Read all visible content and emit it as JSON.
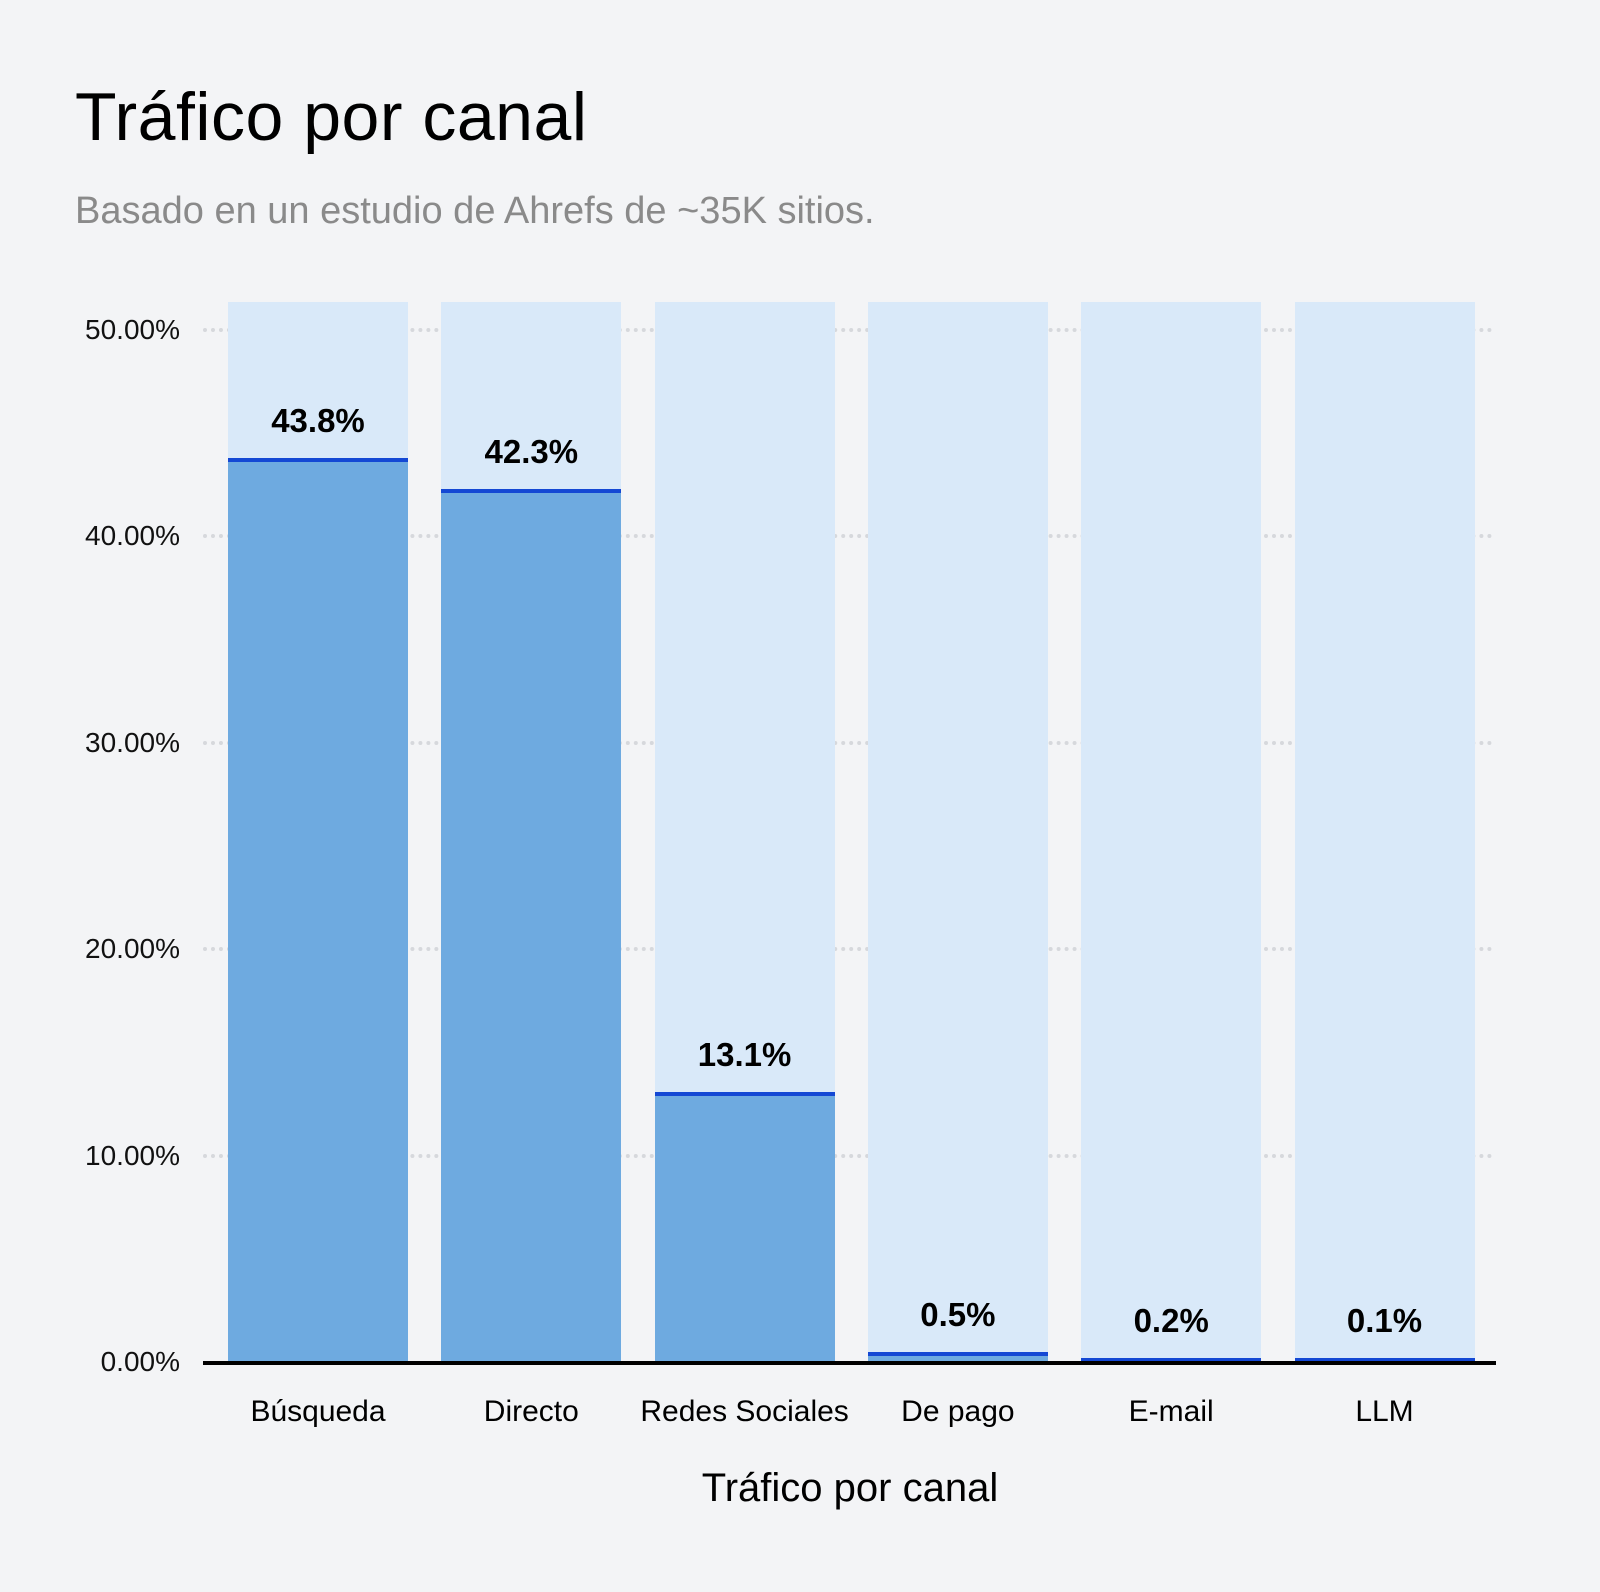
{
  "header": {
    "title": "Tráfico por canal",
    "subtitle": "Basado en un estudio de Ahrefs de ~35K sitios."
  },
  "colors": {
    "background": "#f3f4f6",
    "bar_background": "#d9e9f9",
    "bar_fill": "#6eaae0",
    "bar_top_line": "#1448d4"
  },
  "chart_data": {
    "type": "bar",
    "title": "Tráfico por canal",
    "subtitle": "Basado en un estudio de Ahrefs de ~35K sitios.",
    "xlabel": "Tráfico por canal",
    "ylabel": "",
    "categories": [
      "Búsqueda",
      "Directo",
      "Redes Sociales",
      "De pago",
      "E-mail",
      "LLM"
    ],
    "values": [
      43.8,
      42.3,
      13.1,
      0.5,
      0.2,
      0.1
    ],
    "value_labels": [
      "43.8%",
      "42.3%",
      "13.1%",
      "0.5%",
      "0.2%",
      "0.1%"
    ],
    "ylim": [
      0,
      50
    ],
    "yticks": [
      "0.00%",
      "10.00%",
      "20.00%",
      "30.00%",
      "40.00%",
      "50.00%"
    ],
    "grid": true,
    "legend": null
  }
}
